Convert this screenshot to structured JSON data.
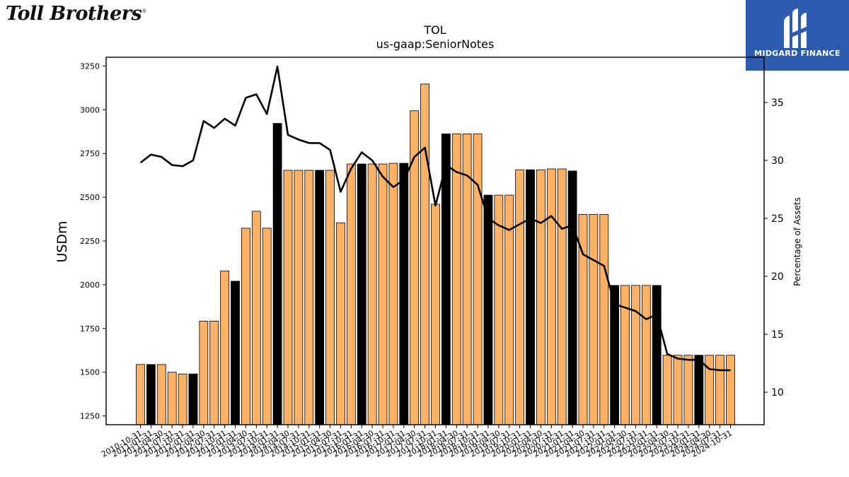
{
  "brand": {
    "company_logo_text": "Toll Brothers",
    "company_logo_mark": "®",
    "badge_text": "MIDGARD FINANCE",
    "badge_color": "#2c5bb0"
  },
  "colors": {
    "bar_default": "#fdb164",
    "bar_highlight": "#000000",
    "line": "#000000"
  },
  "chart_data": {
    "type": "bar",
    "title": "TOL",
    "subtitle": "us-gaap:SeniorNotes",
    "ylabel": "USDm",
    "ylabel_right": "Percentage of Assets",
    "ylim": [
      1200,
      3300
    ],
    "y_ticks": [
      1250,
      1500,
      1750,
      2000,
      2250,
      2500,
      2750,
      3000,
      3250
    ],
    "ylim_right": [
      7.2,
      38.9
    ],
    "y_ticks_right": [
      10,
      15,
      20,
      25,
      30,
      35
    ],
    "categories": [
      "2010-10-31",
      "2011-01-31",
      "2011-04-30",
      "2011-07-31",
      "2011-10-31",
      "2012-01-31",
      "2012-04-30",
      "2012-07-31",
      "2012-10-31",
      "2013-01-31",
      "2013-04-30",
      "2013-07-31",
      "2013-10-31",
      "2014-01-31",
      "2014-04-30",
      "2014-07-31",
      "2014-10-31",
      "2015-01-31",
      "2015-04-30",
      "2015-07-31",
      "2015-10-31",
      "2016-01-31",
      "2016-04-30",
      "2016-07-31",
      "2016-10-31",
      "2017-01-31",
      "2017-04-30",
      "2017-07-31",
      "2017-10-31",
      "2018-01-31",
      "2018-04-30",
      "2018-07-31",
      "2018-10-31",
      "2019-01-31",
      "2019-04-30",
      "2019-07-31",
      "2019-10-31",
      "2020-01-31",
      "2020-04-30",
      "2020-07-31",
      "2020-10-31",
      "2021-01-31",
      "2021-04-30",
      "2021-07-31",
      "2021-10-31",
      "2022-01-31",
      "2022-04-30",
      "2022-07-31",
      "2022-10-31",
      "2023-01-31",
      "2023-04-30",
      "2023-07-31",
      "2023-10-31",
      "2024-01-31",
      "2024-04-30",
      "2024-07-31",
      "2024-10-31"
    ],
    "series": [
      {
        "kind": "bar",
        "axis": "left",
        "values": [
          1544,
          1544,
          1544,
          1500,
          1490,
          1490,
          1792,
          1792,
          2079,
          2020,
          2323,
          2420,
          2323,
          2922,
          2654,
          2654,
          2654,
          2654,
          2654,
          2354,
          2690,
          2690,
          2690,
          2690,
          2694,
          2694,
          2994,
          3147,
          2460,
          2862,
          2862,
          2862,
          2862,
          2512,
          2512,
          2512,
          2657,
          2657,
          2657,
          2662,
          2662,
          2650,
          2402,
          2402,
          2402,
          1996,
          1996,
          1996,
          1996,
          1996,
          1597,
          1597,
          1597,
          1597,
          1597,
          1597,
          1597
        ],
        "highlight": [
          false,
          true,
          false,
          false,
          false,
          true,
          false,
          false,
          false,
          true,
          false,
          false,
          false,
          true,
          false,
          false,
          false,
          true,
          false,
          false,
          false,
          true,
          false,
          false,
          false,
          true,
          false,
          false,
          false,
          true,
          false,
          false,
          false,
          true,
          false,
          false,
          false,
          true,
          false,
          false,
          false,
          true,
          false,
          false,
          false,
          true,
          false,
          false,
          false,
          true,
          false,
          false,
          false,
          true,
          false,
          false,
          false
        ]
      },
      {
        "kind": "line",
        "axis": "right",
        "values": [
          29.8,
          30.5,
          30.3,
          29.6,
          29.5,
          30.0,
          33.4,
          32.8,
          33.6,
          33.0,
          35.4,
          35.7,
          34.0,
          38.1,
          32.2,
          31.8,
          31.5,
          31.5,
          30.9,
          27.3,
          29.3,
          30.7,
          30.0,
          28.6,
          27.7,
          28.3,
          30.3,
          31.1,
          26.1,
          29.6,
          29.0,
          28.7,
          27.9,
          25.0,
          24.4,
          24.0,
          24.5,
          25.0,
          24.6,
          25.2,
          24.1,
          24.4,
          21.9,
          21.4,
          20.9,
          17.6,
          17.3,
          17.0,
          16.3,
          16.7,
          13.3,
          12.9,
          12.8,
          12.8,
          12.0,
          11.9,
          11.9
        ]
      }
    ]
  }
}
